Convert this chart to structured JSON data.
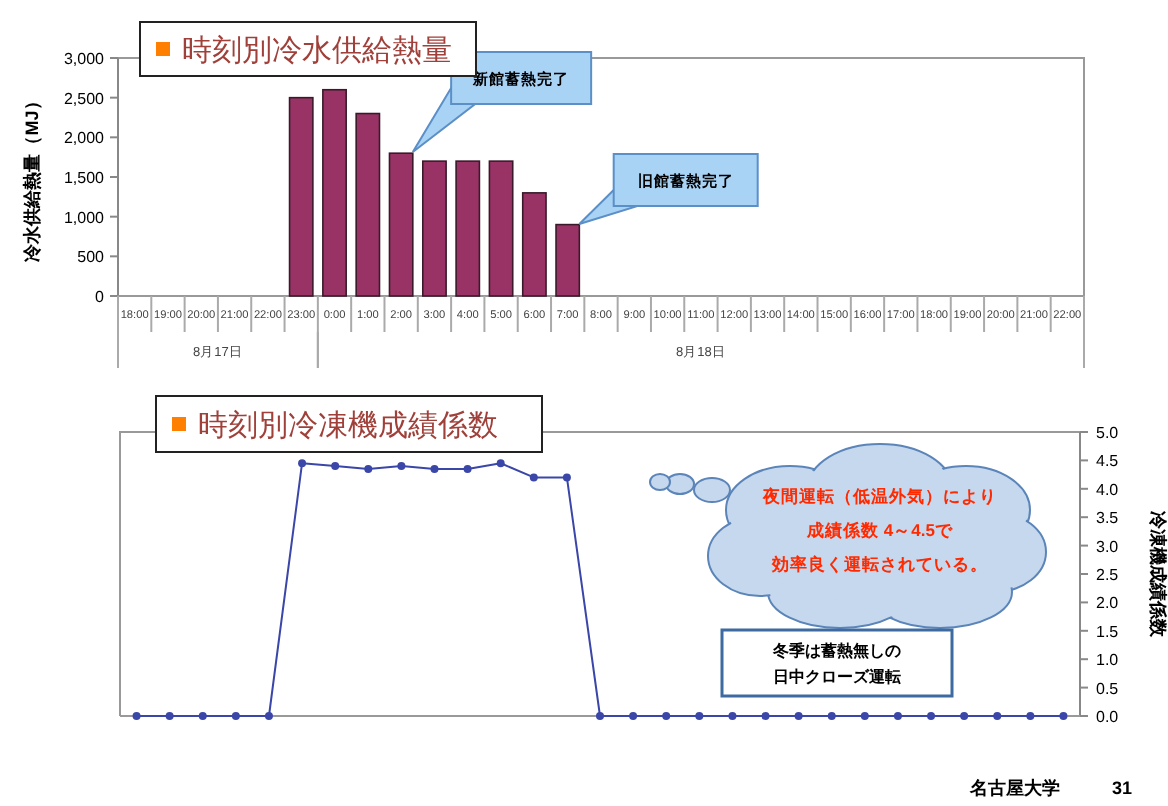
{
  "chart_data": [
    {
      "type": "bar",
      "title": "時刻別冷水供給熱量",
      "ylabel": "冷水供給熱量（MJ）",
      "categories": [
        "18:00",
        "19:00",
        "20:00",
        "21:00",
        "22:00",
        "23:00",
        "0:00",
        "1:00",
        "2:00",
        "3:00",
        "4:00",
        "5:00",
        "6:00",
        "7:00",
        "8:00",
        "9:00",
        "10:00",
        "11:00",
        "12:00",
        "13:00",
        "14:00",
        "15:00",
        "16:00",
        "17:00",
        "18:00",
        "19:00",
        "20:00",
        "21:00",
        "22:00"
      ],
      "values": [
        null,
        null,
        null,
        null,
        null,
        2500,
        2600,
        2300,
        1800,
        1700,
        1700,
        1700,
        1300,
        900,
        null,
        null,
        null,
        null,
        null,
        null,
        null,
        null,
        null,
        null,
        null,
        null,
        null,
        null,
        null
      ],
      "color": "#993366",
      "ylim": [
        0,
        3000
      ],
      "yticks": [
        0,
        500,
        {
          "value": 1000,
          "label": "1,000"
        },
        {
          "value": 1500,
          "label": "1,500"
        },
        {
          "value": 2000,
          "label": "2,000"
        },
        {
          "value": 2500,
          "label": "2,500"
        },
        {
          "value": 3000,
          "label": "3,000"
        }
      ],
      "grid": false,
      "annotations": [
        "8月17日",
        "8月18日",
        "新館蓄熱完了",
        "旧館蓄熱完了"
      ]
    },
    {
      "type": "line",
      "title": "時刻別冷凍機成績係数",
      "ylabel": "冷凍機成績係数",
      "categories": [
        null,
        null,
        null,
        null,
        null,
        null,
        null,
        null,
        null,
        null,
        null,
        null,
        null,
        null,
        null,
        null,
        null,
        null,
        null,
        null,
        null,
        null,
        null,
        null,
        null,
        null,
        null,
        null,
        null
      ],
      "series": [
        {
          "color": "#3a46a8",
          "values": [
            0,
            0,
            0,
            0,
            0,
            4.45,
            4.4,
            4.35,
            4.4,
            4.35,
            4.35,
            4.45,
            4.2,
            4.2,
            0,
            0,
            0,
            0,
            0,
            0,
            0,
            0,
            0,
            0,
            0,
            0,
            0,
            0,
            0
          ]
        }
      ],
      "ylim": [
        0,
        5
      ],
      "yticks": [
        {
          "value": 0,
          "label": "0.0"
        },
        {
          "value": 0.5,
          "label": "0.5"
        },
        {
          "value": 1,
          "label": "1.0"
        },
        {
          "value": 1.5,
          "label": "1.5"
        },
        {
          "value": 2,
          "label": "2.0"
        },
        {
          "value": 2.5,
          "label": "2.5"
        },
        {
          "value": 3,
          "label": "3.0"
        },
        {
          "value": 3.5,
          "label": "3.5"
        },
        {
          "value": 4,
          "label": "4.0"
        },
        {
          "value": 4.5,
          "label": "4.5"
        },
        {
          "value": 5,
          "label": "5.0"
        }
      ],
      "grid": false,
      "marker": "circle",
      "line_style": "solid",
      "annotations": [
        "夜間運転（低温外気）により",
        "成績係数 4～4.5で",
        "効率良く運転されている。",
        "冬季は蓄熱無しの",
        "日中クローズ運転",
        "名古屋大学",
        "31"
      ]
    }
  ]
}
